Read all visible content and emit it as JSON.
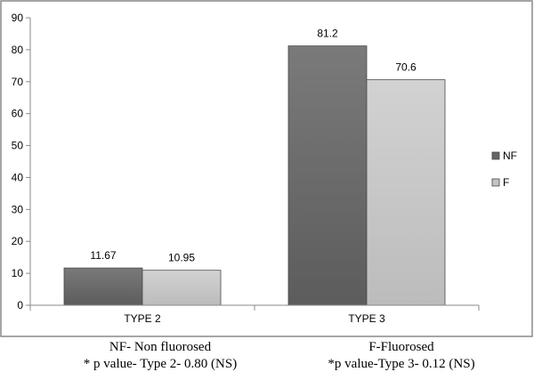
{
  "chart_data": {
    "type": "bar",
    "categories": [
      "TYPE 2",
      "TYPE 3"
    ],
    "series": [
      {
        "name": "NF",
        "values": [
          11.67,
          81.2
        ],
        "labels": [
          "11.67",
          "81.2"
        ],
        "color": "#666666"
      },
      {
        "name": "F",
        "values": [
          10.95,
          70.6
        ],
        "labels": [
          "10.95",
          "70.6"
        ],
        "color": "#c4c4c4"
      }
    ],
    "ylim": [
      0,
      90
    ],
    "yticks": [
      0,
      10,
      20,
      30,
      40,
      50,
      60,
      70,
      80,
      90
    ],
    "legend": "right",
    "grid": false
  },
  "captions": {
    "left": [
      "NF- Non fluorosed",
      "* p value- Type 2- 0.80 (NS)"
    ],
    "right": [
      "F-Fluorosed",
      "*p value-Type 3-  0.12 (NS)"
    ]
  }
}
